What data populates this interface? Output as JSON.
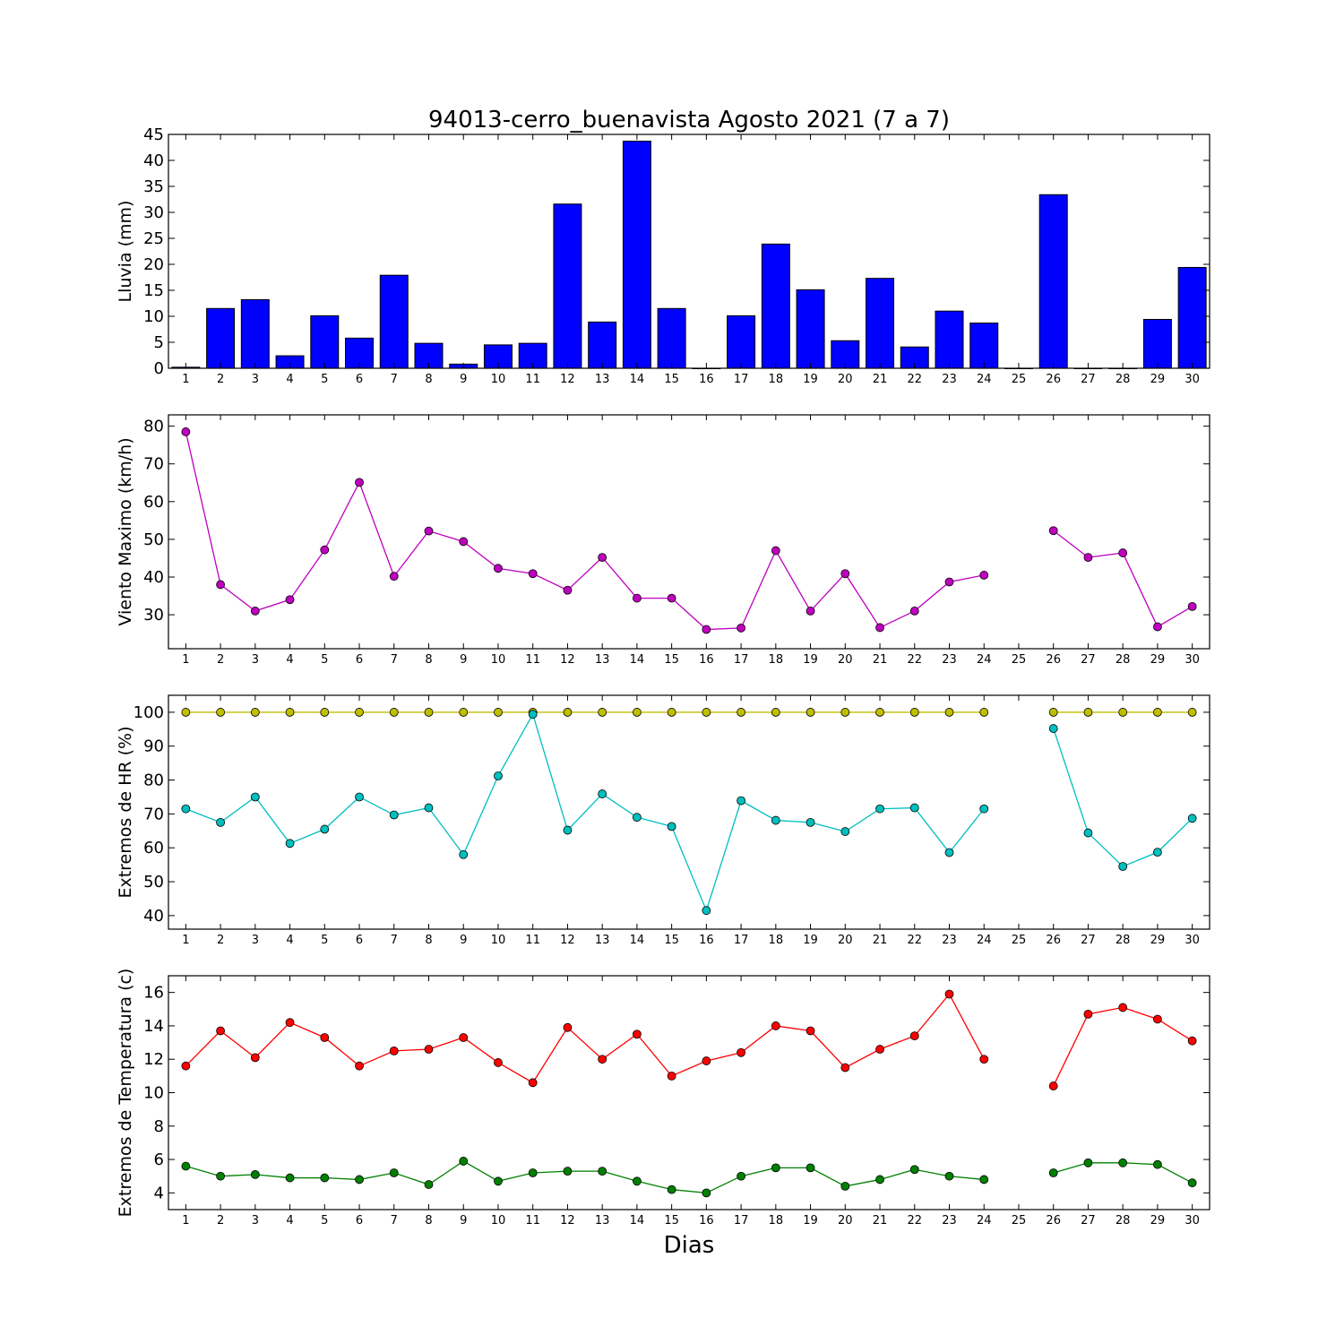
{
  "chart_data": {
    "type": "multi-panel",
    "title": "94013-cerro_buenavista Agosto 2021  (7 a 7)",
    "xlabel": "Dias",
    "days": [
      1,
      2,
      3,
      4,
      5,
      6,
      7,
      8,
      9,
      10,
      11,
      12,
      13,
      14,
      15,
      16,
      17,
      18,
      19,
      20,
      21,
      22,
      23,
      24,
      25,
      26,
      27,
      28,
      29,
      30
    ],
    "panels": [
      {
        "type": "bar",
        "ylabel": "Lluvia (mm)",
        "ylim": [
          0,
          45
        ],
        "yticks": [
          0,
          5,
          10,
          15,
          20,
          25,
          30,
          35,
          40,
          45
        ],
        "series": [
          {
            "color": "#0000ff",
            "values": [
              0.2,
              11.5,
              13.2,
              2.4,
              10.1,
              5.8,
              17.9,
              4.8,
              0.8,
              4.5,
              4.8,
              31.6,
              8.9,
              43.7,
              11.5,
              0,
              10.1,
              23.9,
              15.1,
              5.3,
              17.3,
              4.1,
              11.0,
              8.7,
              0,
              33.4,
              0,
              0,
              9.4,
              19.4
            ]
          }
        ]
      },
      {
        "type": "line",
        "ylabel": "Viento Maximo (km/h)",
        "ylim": [
          21,
          83
        ],
        "yticks": [
          30,
          40,
          50,
          60,
          70,
          80
        ],
        "series": [
          {
            "color": "#bf00bf",
            "values": [
              78.5,
              38.0,
              31.0,
              34.0,
              47.2,
              65.1,
              40.2,
              52.2,
              49.4,
              42.3,
              40.9,
              36.5,
              45.2,
              34.4,
              34.4,
              26.1,
              26.5,
              47.0,
              31.0,
              40.9,
              26.6,
              31.0,
              38.7,
              40.5,
              null,
              52.3,
              45.2,
              46.4,
              26.8,
              32.2
            ]
          }
        ]
      },
      {
        "type": "line",
        "ylabel": "Extremos de HR (%)",
        "ylim": [
          36,
          105
        ],
        "yticks": [
          40,
          50,
          60,
          70,
          80,
          90,
          100
        ],
        "series": [
          {
            "color": "#bfbf00",
            "values": [
              100,
              100,
              100,
              100,
              100,
              100,
              100,
              100,
              100,
              100,
              100,
              100,
              100,
              100,
              100,
              100,
              100,
              100,
              100,
              100,
              100,
              100,
              100,
              100,
              null,
              100,
              100,
              100,
              100,
              100
            ]
          },
          {
            "color": "#00bfbf",
            "values": [
              71.5,
              67.5,
              75.0,
              61.3,
              65.5,
              75.0,
              69.7,
              71.8,
              58.0,
              81.2,
              99.4,
              65.2,
              75.9,
              69.0,
              66.3,
              41.5,
              73.9,
              68.1,
              67.5,
              64.8,
              71.5,
              71.8,
              58.6,
              71.5,
              null,
              95.2,
              64.4,
              54.5,
              58.7,
              68.7
            ]
          }
        ]
      },
      {
        "type": "line",
        "ylabel": "Extremos de Temperatura (c)",
        "ylim": [
          3,
          17
        ],
        "yticks": [
          4,
          6,
          8,
          10,
          12,
          14,
          16
        ],
        "series": [
          {
            "color": "#ff0000",
            "values": [
              11.6,
              13.7,
              12.1,
              14.2,
              13.3,
              11.6,
              12.5,
              12.6,
              13.3,
              11.8,
              10.6,
              13.9,
              12.0,
              13.5,
              11.0,
              11.9,
              12.4,
              14.0,
              13.7,
              11.5,
              12.6,
              13.4,
              15.9,
              12.0,
              null,
              10.4,
              14.7,
              15.1,
              14.4,
              13.1
            ]
          },
          {
            "color": "#008000",
            "values": [
              5.6,
              5.0,
              5.1,
              4.9,
              4.9,
              4.8,
              5.2,
              4.5,
              5.9,
              4.7,
              5.2,
              5.3,
              5.3,
              4.7,
              4.2,
              4.0,
              5.0,
              5.5,
              5.5,
              4.4,
              4.8,
              5.4,
              5.0,
              4.8,
              null,
              5.2,
              5.8,
              5.8,
              5.7,
              4.6
            ]
          }
        ]
      }
    ]
  }
}
